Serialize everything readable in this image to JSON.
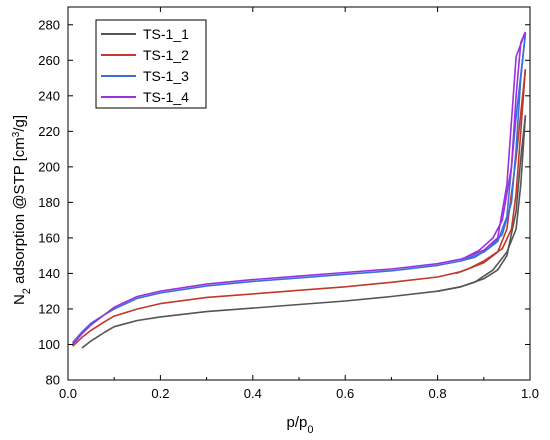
{
  "chart_data": {
    "type": "line",
    "xlabel": "p/p0",
    "xlabel_main": "p/p",
    "xlabel_sub": "0",
    "ylabel": "N2 adsorption @STP [cm3/g]",
    "ylabel_parts": {
      "n": "N",
      "n_sub": "2",
      "middle": " adsorption @STP [cm",
      "sup": "3",
      "end": "/g]"
    },
    "xlim": [
      0.0,
      1.0
    ],
    "ylim": [
      80,
      290
    ],
    "xticks": [
      "0.0",
      "0.2",
      "0.4",
      "0.6",
      "0.8",
      "1.0"
    ],
    "yticks": [
      "80",
      "100",
      "120",
      "140",
      "160",
      "180",
      "200",
      "220",
      "240",
      "260",
      "280"
    ],
    "grid": false,
    "legend_position": "top-left",
    "series": [
      {
        "name": "TS-1_1",
        "color": "#555555",
        "adsorption": [
          [
            0.03,
            98
          ],
          [
            0.05,
            102
          ],
          [
            0.08,
            107
          ],
          [
            0.1,
            110
          ],
          [
            0.15,
            113.5
          ],
          [
            0.2,
            115.5
          ],
          [
            0.3,
            118.5
          ],
          [
            0.4,
            120.5
          ],
          [
            0.5,
            122.5
          ],
          [
            0.6,
            124.5
          ],
          [
            0.7,
            127
          ],
          [
            0.8,
            130
          ],
          [
            0.85,
            132.5
          ],
          [
            0.9,
            137
          ],
          [
            0.93,
            142
          ],
          [
            0.95,
            150
          ],
          [
            0.97,
            175
          ],
          [
            0.98,
            205
          ],
          [
            0.99,
            229
          ]
        ],
        "desorption": [
          [
            0.99,
            229
          ],
          [
            0.98,
            190
          ],
          [
            0.97,
            165
          ],
          [
            0.95,
            152
          ],
          [
            0.92,
            142
          ],
          [
            0.88,
            135
          ],
          [
            0.85,
            132.5
          ],
          [
            0.8,
            130
          ]
        ]
      },
      {
        "name": "TS-1_2",
        "color": "#c0392b",
        "adsorption": [
          [
            0.01,
            99
          ],
          [
            0.03,
            104
          ],
          [
            0.05,
            108
          ],
          [
            0.08,
            113
          ],
          [
            0.1,
            116
          ],
          [
            0.15,
            120
          ],
          [
            0.2,
            123
          ],
          [
            0.3,
            126.5
          ],
          [
            0.4,
            128.5
          ],
          [
            0.5,
            130.5
          ],
          [
            0.6,
            132.5
          ],
          [
            0.7,
            135
          ],
          [
            0.8,
            138
          ],
          [
            0.85,
            141
          ],
          [
            0.9,
            146
          ],
          [
            0.93,
            152
          ],
          [
            0.95,
            165
          ],
          [
            0.97,
            205
          ],
          [
            0.99,
            255
          ]
        ],
        "desorption": [
          [
            0.99,
            255
          ],
          [
            0.98,
            220
          ],
          [
            0.97,
            185
          ],
          [
            0.96,
            165
          ],
          [
            0.94,
            154
          ],
          [
            0.9,
            147
          ],
          [
            0.87,
            143
          ],
          [
            0.84,
            140
          ]
        ]
      },
      {
        "name": "TS-1_3",
        "color": "#3a6fd8",
        "adsorption": [
          [
            0.01,
            101
          ],
          [
            0.03,
            107
          ],
          [
            0.05,
            112
          ],
          [
            0.08,
            117
          ],
          [
            0.1,
            120
          ],
          [
            0.15,
            126
          ],
          [
            0.2,
            129
          ],
          [
            0.3,
            133
          ],
          [
            0.4,
            135.5
          ],
          [
            0.5,
            137.5
          ],
          [
            0.6,
            139.5
          ],
          [
            0.7,
            141.5
          ],
          [
            0.8,
            144.5
          ],
          [
            0.85,
            147
          ],
          [
            0.9,
            152
          ],
          [
            0.93,
            158
          ],
          [
            0.95,
            172
          ],
          [
            0.97,
            228
          ],
          [
            0.99,
            275
          ]
        ],
        "desorption": [
          [
            0.99,
            275
          ],
          [
            0.98,
            250
          ],
          [
            0.97,
            210
          ],
          [
            0.96,
            180
          ],
          [
            0.94,
            162
          ],
          [
            0.91,
            154
          ],
          [
            0.88,
            149
          ],
          [
            0.85,
            147
          ]
        ]
      },
      {
        "name": "TS-1_4",
        "color": "#9b30e0",
        "adsorption": [
          [
            0.01,
            100
          ],
          [
            0.03,
            106
          ],
          [
            0.05,
            111
          ],
          [
            0.08,
            117
          ],
          [
            0.1,
            121
          ],
          [
            0.15,
            127
          ],
          [
            0.2,
            130
          ],
          [
            0.3,
            134
          ],
          [
            0.4,
            136.5
          ],
          [
            0.5,
            138.5
          ],
          [
            0.6,
            140.5
          ],
          [
            0.7,
            142.5
          ],
          [
            0.8,
            145.5
          ],
          [
            0.85,
            148
          ],
          [
            0.9,
            153
          ],
          [
            0.93,
            160
          ],
          [
            0.95,
            190
          ],
          [
            0.97,
            262
          ],
          [
            0.99,
            276
          ]
        ],
        "desorption": [
          [
            0.99,
            276
          ],
          [
            0.98,
            270
          ],
          [
            0.97,
            240
          ],
          [
            0.96,
            200
          ],
          [
            0.94,
            170
          ],
          [
            0.92,
            160
          ],
          [
            0.89,
            153
          ],
          [
            0.86,
            149
          ]
        ]
      }
    ]
  }
}
